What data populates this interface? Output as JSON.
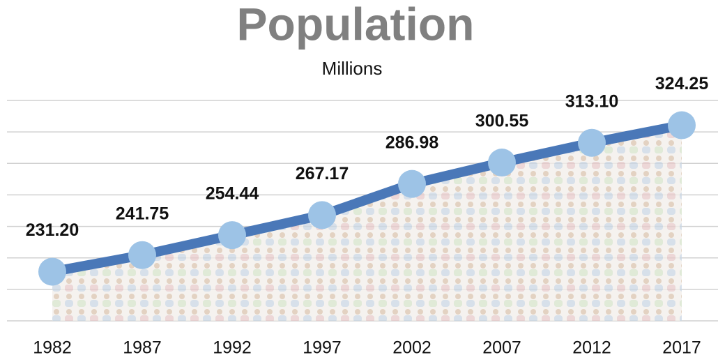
{
  "chart_data": {
    "type": "line",
    "title": "Population",
    "subtitle": "Millions",
    "categories": [
      "1982",
      "1987",
      "1992",
      "1997",
      "2002",
      "2007",
      "2012",
      "2017"
    ],
    "values": [
      231.2,
      241.75,
      254.44,
      267.17,
      286.98,
      300.55,
      313.1,
      324.25
    ],
    "value_labels": [
      "231.20",
      "241.75",
      "254.44",
      "267.17",
      "286.98",
      "300.55",
      "313.10",
      "324.25"
    ],
    "color": "#4a78b8",
    "marker_color": "#9dc3e6",
    "ylim": [
      200,
      340
    ],
    "yticks": [
      200,
      220,
      240,
      260,
      280,
      300,
      320,
      340
    ],
    "grid": true
  }
}
